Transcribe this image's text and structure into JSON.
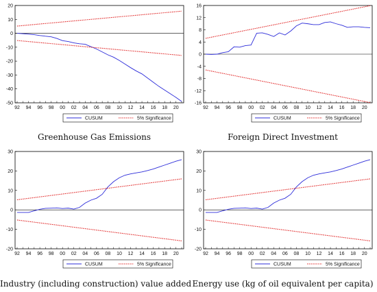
{
  "chart_data": [
    {
      "type": "line",
      "title": "",
      "caption": "Greenhouse Gas Emissions",
      "x": [
        1992,
        1993,
        1994,
        1995,
        1996,
        1997,
        1998,
        1999,
        2000,
        2001,
        2002,
        2003,
        2004,
        2005,
        2006,
        2007,
        2008,
        2009,
        2010,
        2011,
        2012,
        2013,
        2014,
        2015,
        2016,
        2017,
        2018,
        2019,
        2020,
        2021
      ],
      "xticks": [
        "92",
        "94",
        "96",
        "98",
        "00",
        "02",
        "04",
        "06",
        "08",
        "10",
        "12",
        "14",
        "16",
        "18",
        "20"
      ],
      "ylim": [
        -50,
        20
      ],
      "yticks": [
        "20",
        "10",
        "0",
        "-10",
        "-20",
        "-30",
        "-40",
        "-50"
      ],
      "series": [
        {
          "name": "CUSUM",
          "color": "#2b2bd9",
          "style": "solid",
          "values": [
            0,
            -0.3,
            -0.6,
            -1,
            -1.6,
            -2.1,
            -2.5,
            -3.7,
            -5.3,
            -5.9,
            -6.9,
            -7.5,
            -7.9,
            -9.6,
            -11.3,
            -13.4,
            -15.5,
            -17.2,
            -19.5,
            -22.1,
            -24.7,
            -27.1,
            -29.2,
            -32.2,
            -35.2,
            -38.2,
            -40.8,
            -43.5,
            -46.1,
            -49
          ]
        },
        {
          "name": "5% Significance",
          "color": "#e02020",
          "style": "dotted",
          "values": [
            5.2,
            5.57,
            5.94,
            6.31,
            6.68,
            7.05,
            7.42,
            7.79,
            8.16,
            8.53,
            8.9,
            9.27,
            9.64,
            10.01,
            10.38,
            10.75,
            11.12,
            11.49,
            11.86,
            12.23,
            12.6,
            12.97,
            13.34,
            13.71,
            14.08,
            14.45,
            14.82,
            15.19,
            15.56,
            15.93
          ]
        },
        {
          "name": "5% Significance",
          "color": "#e02020",
          "style": "dotted",
          "legend": false,
          "values": [
            -5.2,
            -5.57,
            -5.94,
            -6.31,
            -6.68,
            -7.05,
            -7.42,
            -7.79,
            -8.16,
            -8.53,
            -8.9,
            -9.27,
            -9.64,
            -10.01,
            -10.38,
            -10.75,
            -11.12,
            -11.49,
            -11.86,
            -12.23,
            -12.6,
            -12.97,
            -13.34,
            -13.71,
            -14.08,
            -14.45,
            -14.82,
            -15.19,
            -15.56,
            -15.93
          ]
        }
      ]
    },
    {
      "type": "line",
      "title": "",
      "caption": "Foreign Direct Investment",
      "x": [
        1992,
        1993,
        1994,
        1995,
        1996,
        1997,
        1998,
        1999,
        2000,
        2001,
        2002,
        2003,
        2004,
        2005,
        2006,
        2007,
        2008,
        2009,
        2010,
        2011,
        2012,
        2013,
        2014,
        2015,
        2016,
        2017,
        2018,
        2019,
        2020,
        2021
      ],
      "xticks": [
        "92",
        "94",
        "96",
        "98",
        "00",
        "02",
        "04",
        "06",
        "08",
        "10",
        "12",
        "14",
        "16",
        "18",
        "20"
      ],
      "ylim": [
        -16,
        16
      ],
      "yticks": [
        "16",
        "12",
        "8",
        "4",
        "0",
        "-4",
        "-8",
        "-12",
        "-16"
      ],
      "series": [
        {
          "name": "CUSUM",
          "color": "#2b2bd9",
          "style": "solid",
          "values": [
            0,
            -0.1,
            0,
            0.5,
            0.8,
            2.4,
            2.3,
            2.8,
            3.0,
            6.9,
            7.0,
            6.5,
            5.8,
            7.0,
            6.3,
            7.6,
            9.3,
            10.2,
            10.0,
            9.7,
            9.7,
            10.4,
            10.6,
            10.0,
            9.5,
            8.8,
            9.0,
            9.0,
            8.8,
            8.7
          ]
        },
        {
          "name": "5% Significance",
          "color": "#e02020",
          "style": "dotted",
          "values": [
            5.2,
            5.57,
            5.94,
            6.31,
            6.68,
            7.05,
            7.42,
            7.79,
            8.16,
            8.53,
            8.9,
            9.27,
            9.64,
            10.01,
            10.38,
            10.75,
            11.12,
            11.49,
            11.86,
            12.23,
            12.6,
            12.97,
            13.34,
            13.71,
            14.08,
            14.45,
            14.82,
            15.19,
            15.56,
            15.93
          ]
        },
        {
          "name": "5% Significance",
          "color": "#e02020",
          "style": "dotted",
          "legend": false,
          "values": [
            -5.2,
            -5.57,
            -5.94,
            -6.31,
            -6.68,
            -7.05,
            -7.42,
            -7.79,
            -8.16,
            -8.53,
            -8.9,
            -9.27,
            -9.64,
            -10.01,
            -10.38,
            -10.75,
            -11.12,
            -11.49,
            -11.86,
            -12.23,
            -12.6,
            -12.97,
            -13.34,
            -13.71,
            -14.08,
            -14.45,
            -14.82,
            -15.19,
            -15.56,
            -15.93
          ]
        }
      ]
    },
    {
      "type": "line",
      "title": "",
      "caption": "Industry (including construction) value added",
      "x": [
        1992,
        1993,
        1994,
        1995,
        1996,
        1997,
        1998,
        1999,
        2000,
        2001,
        2002,
        2003,
        2004,
        2005,
        2006,
        2007,
        2008,
        2009,
        2010,
        2011,
        2012,
        2013,
        2014,
        2015,
        2016,
        2017,
        2018,
        2019,
        2020,
        2021
      ],
      "xticks": [
        "92",
        "94",
        "96",
        "98",
        "00",
        "02",
        "04",
        "06",
        "08",
        "10",
        "12",
        "14",
        "16",
        "18",
        "20"
      ],
      "ylim": [
        -20,
        30
      ],
      "yticks": [
        "30",
        "20",
        "10",
        "0",
        "-10",
        "-20"
      ],
      "series": [
        {
          "name": "CUSUM",
          "color": "#2b2bd9",
          "style": "solid",
          "values": [
            -1.3,
            -1.3,
            -1.3,
            -0.5,
            0.3,
            0.8,
            0.9,
            1.0,
            0.7,
            0.9,
            0.4,
            1.3,
            3.5,
            5.0,
            6.0,
            8.0,
            11.8,
            14.5,
            16.5,
            17.8,
            18.5,
            19.0,
            19.5,
            20.2,
            21.0,
            22.0,
            23.0,
            24.0,
            25.0,
            25.8
          ]
        },
        {
          "name": "5% Significance",
          "color": "#e02020",
          "style": "dotted",
          "values": [
            5.2,
            5.57,
            5.94,
            6.31,
            6.68,
            7.05,
            7.42,
            7.79,
            8.16,
            8.53,
            8.9,
            9.27,
            9.64,
            10.01,
            10.38,
            10.75,
            11.12,
            11.49,
            11.86,
            12.23,
            12.6,
            12.97,
            13.34,
            13.71,
            14.08,
            14.45,
            14.82,
            15.19,
            15.56,
            15.93
          ]
        },
        {
          "name": "5% Significance",
          "color": "#e02020",
          "style": "dotted",
          "legend": false,
          "values": [
            -5.2,
            -5.57,
            -5.94,
            -6.31,
            -6.68,
            -7.05,
            -7.42,
            -7.79,
            -8.16,
            -8.53,
            -8.9,
            -9.27,
            -9.64,
            -10.01,
            -10.38,
            -10.75,
            -11.12,
            -11.49,
            -11.86,
            -12.23,
            -12.6,
            -12.97,
            -13.34,
            -13.71,
            -14.08,
            -14.45,
            -14.82,
            -15.19,
            -15.56,
            -15.93
          ]
        }
      ]
    },
    {
      "type": "line",
      "title": "",
      "caption": "Energy use (kg of oil equivalent per capita)",
      "x": [
        1992,
        1993,
        1994,
        1995,
        1996,
        1997,
        1998,
        1999,
        2000,
        2001,
        2002,
        2003,
        2004,
        2005,
        2006,
        2007,
        2008,
        2009,
        2010,
        2011,
        2012,
        2013,
        2014,
        2015,
        2016,
        2017,
        2018,
        2019,
        2020,
        2021
      ],
      "xticks": [
        "92",
        "94",
        "96",
        "98",
        "00",
        "02",
        "04",
        "06",
        "08",
        "10",
        "12",
        "14",
        "16",
        "18",
        "20"
      ],
      "ylim": [
        -20,
        30
      ],
      "yticks": [
        "30",
        "20",
        "10",
        "0",
        "-10",
        "-20"
      ],
      "series": [
        {
          "name": "CUSUM",
          "color": "#2b2bd9",
          "style": "solid",
          "values": [
            -1.3,
            -1.3,
            -1.3,
            -0.5,
            0.3,
            0.8,
            0.9,
            1.0,
            0.7,
            0.9,
            0.4,
            1.3,
            3.5,
            5.0,
            6.0,
            8.0,
            11.8,
            14.5,
            16.5,
            17.8,
            18.5,
            19.0,
            19.5,
            20.2,
            21.0,
            22.0,
            23.0,
            24.0,
            25.0,
            25.8
          ]
        },
        {
          "name": "5% Significance",
          "color": "#e02020",
          "style": "dotted",
          "values": [
            5.2,
            5.57,
            5.94,
            6.31,
            6.68,
            7.05,
            7.42,
            7.79,
            8.16,
            8.53,
            8.9,
            9.27,
            9.64,
            10.01,
            10.38,
            10.75,
            11.12,
            11.49,
            11.86,
            12.23,
            12.6,
            12.97,
            13.34,
            13.71,
            14.08,
            14.45,
            14.82,
            15.19,
            15.56,
            15.93
          ]
        },
        {
          "name": "5% Significance",
          "color": "#e02020",
          "style": "dotted",
          "legend": false,
          "values": [
            -5.2,
            -5.57,
            -5.94,
            -6.31,
            -6.68,
            -7.05,
            -7.42,
            -7.79,
            -8.16,
            -8.53,
            -8.9,
            -9.27,
            -9.64,
            -10.01,
            -10.38,
            -10.75,
            -11.12,
            -11.49,
            -11.86,
            -12.23,
            -12.6,
            -12.97,
            -13.34,
            -13.71,
            -14.08,
            -14.45,
            -14.82,
            -15.19,
            -15.56,
            -15.93
          ]
        }
      ]
    }
  ]
}
